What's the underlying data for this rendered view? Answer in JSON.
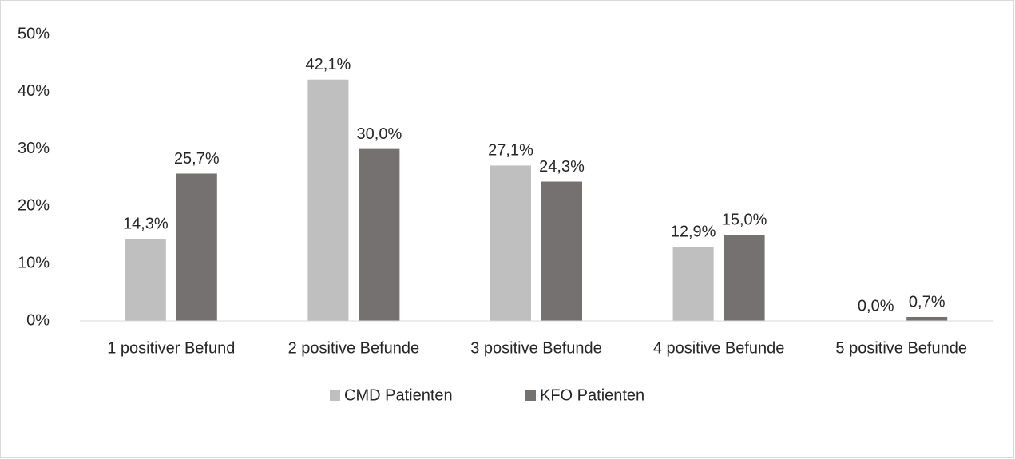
{
  "chart_data": {
    "type": "bar",
    "categories": [
      "1 positiver Befund",
      "2 positive Befunde",
      "3 positive Befunde",
      "4 positive Befunde",
      "5 positive Befunde"
    ],
    "series": [
      {
        "name": "CMD Patienten",
        "color": "#bfbfbf",
        "values": [
          14.3,
          42.1,
          27.1,
          12.9,
          0.0
        ],
        "value_labels": [
          "14,3%",
          "42,1%",
          "27,1%",
          "12,9%",
          "0,0%"
        ]
      },
      {
        "name": "KFO Patienten",
        "color": "#767171",
        "values": [
          25.7,
          30.0,
          24.3,
          15.0,
          0.7
        ],
        "value_labels": [
          "25,7%",
          "30,0%",
          "24,3%",
          "15,0%",
          "0,7%"
        ]
      }
    ],
    "ylim": [
      0,
      50
    ],
    "yticks": [
      {
        "value": 0,
        "label": "0%"
      },
      {
        "value": 10,
        "label": "10%"
      },
      {
        "value": 20,
        "label": "20%"
      },
      {
        "value": 30,
        "label": "30%"
      },
      {
        "value": 40,
        "label": "40%"
      },
      {
        "value": 50,
        "label": "50%"
      }
    ],
    "grid": false,
    "legend": "bottom"
  }
}
